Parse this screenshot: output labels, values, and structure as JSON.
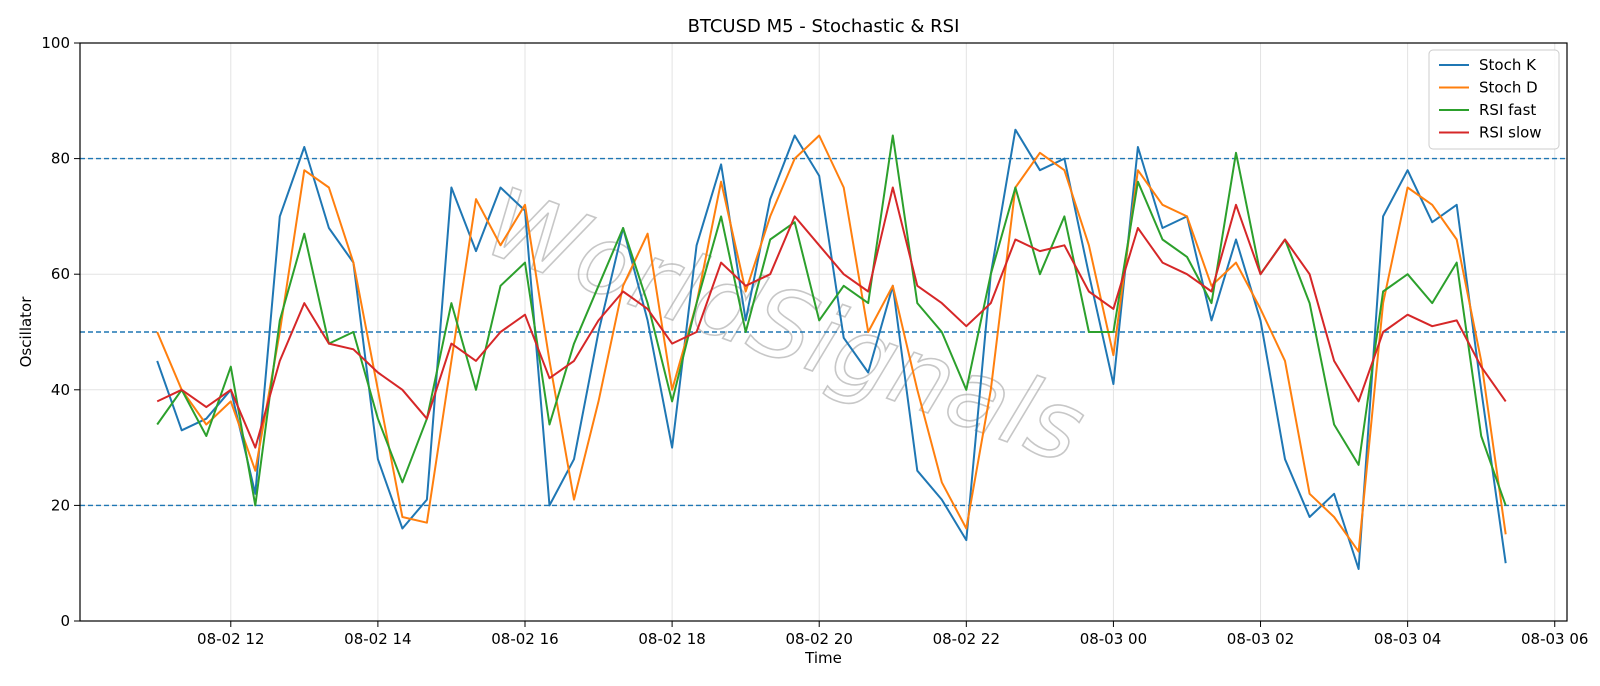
{
  "chart_data": {
    "type": "line",
    "title": "BTCUSD M5 - Stochastic & RSI",
    "xlabel": "Time",
    "ylabel": "Oscillator",
    "ylim": [
      0,
      100
    ],
    "yticks": [
      0,
      20,
      40,
      60,
      80,
      100
    ],
    "xlim": [
      "08-02 09:57",
      "08-03 06:10"
    ],
    "xticks": [
      "08-02 12",
      "08-02 14",
      "08-02 16",
      "08-02 18",
      "08-02 20",
      "08-02 22",
      "08-03 00",
      "08-03 02",
      "08-03 04",
      "08-03 06"
    ],
    "reference_lines": [
      20,
      50,
      80
    ],
    "grid": true,
    "legend_position": "top-right",
    "watermark": "WorldSignals",
    "x": [
      "08-02 11:00",
      "08-02 11:20",
      "08-02 11:40",
      "08-02 12:00",
      "08-02 12:20",
      "08-02 12:40",
      "08-02 13:00",
      "08-02 13:20",
      "08-02 13:40",
      "08-02 14:00",
      "08-02 14:20",
      "08-02 14:40",
      "08-02 15:00",
      "08-02 15:20",
      "08-02 15:40",
      "08-02 16:00",
      "08-02 16:20",
      "08-02 16:40",
      "08-02 17:00",
      "08-02 17:20",
      "08-02 17:40",
      "08-02 18:00",
      "08-02 18:20",
      "08-02 18:40",
      "08-02 19:00",
      "08-02 19:20",
      "08-02 19:40",
      "08-02 20:00",
      "08-02 20:20",
      "08-02 20:40",
      "08-02 21:00",
      "08-02 21:20",
      "08-02 21:40",
      "08-02 22:00",
      "08-02 22:20",
      "08-02 22:40",
      "08-02 23:00",
      "08-02 23:20",
      "08-02 23:40",
      "08-03 00:00",
      "08-03 00:20",
      "08-03 00:40",
      "08-03 01:00",
      "08-03 01:20",
      "08-03 01:40",
      "08-03 02:00",
      "08-03 02:20",
      "08-03 02:40",
      "08-03 03:00",
      "08-03 03:20",
      "08-03 03:40",
      "08-03 04:00",
      "08-03 04:20",
      "08-03 04:40",
      "08-03 05:00",
      "08-03 05:20"
    ],
    "series": [
      {
        "name": "Stoch K",
        "color": "#1f77b4",
        "values": [
          45,
          33,
          35,
          40,
          22,
          70,
          82,
          68,
          62,
          28,
          16,
          21,
          75,
          64,
          75,
          71,
          20,
          28,
          50,
          68,
          52,
          30,
          65,
          79,
          52,
          73,
          84,
          77,
          49,
          43,
          58,
          26,
          21,
          14,
          60,
          85,
          78,
          80,
          60,
          41,
          82,
          68,
          70,
          52,
          66,
          52,
          28,
          18,
          22,
          9,
          70,
          78,
          69,
          72,
          40,
          10
        ]
      },
      {
        "name": "Stoch D",
        "color": "#ff7f0e",
        "values": [
          50,
          40,
          34,
          38,
          26,
          50,
          78,
          75,
          62,
          40,
          18,
          17,
          45,
          73,
          65,
          72,
          45,
          21,
          38,
          58,
          67,
          40,
          55,
          76,
          57,
          70,
          80,
          84,
          75,
          50,
          58,
          40,
          24,
          16,
          40,
          75,
          81,
          78,
          65,
          46,
          78,
          72,
          70,
          58,
          62,
          54,
          45,
          22,
          18,
          12,
          55,
          75,
          72,
          66,
          45,
          15
        ]
      },
      {
        "name": "RSI fast",
        "color": "#2ca02c",
        "values": [
          34,
          40,
          32,
          44,
          20,
          52,
          67,
          48,
          50,
          35,
          24,
          35,
          55,
          40,
          58,
          62,
          34,
          48,
          58,
          68,
          55,
          38,
          55,
          70,
          50,
          66,
          69,
          52,
          58,
          55,
          84,
          55,
          50,
          40,
          60,
          75,
          60,
          70,
          50,
          50,
          76,
          66,
          63,
          55,
          81,
          60,
          66,
          55,
          34,
          27,
          57,
          60,
          55,
          62,
          32,
          20
        ]
      },
      {
        "name": "RSI slow",
        "color": "#d62728",
        "values": [
          38,
          40,
          37,
          40,
          30,
          45,
          55,
          48,
          47,
          43,
          40,
          35,
          48,
          45,
          50,
          53,
          42,
          45,
          52,
          57,
          54,
          48,
          50,
          62,
          58,
          60,
          70,
          65,
          60,
          57,
          75,
          58,
          55,
          51,
          55,
          66,
          64,
          65,
          57,
          54,
          68,
          62,
          60,
          57,
          72,
          60,
          66,
          60,
          45,
          38,
          50,
          53,
          51,
          52,
          44,
          38
        ]
      }
    ]
  }
}
